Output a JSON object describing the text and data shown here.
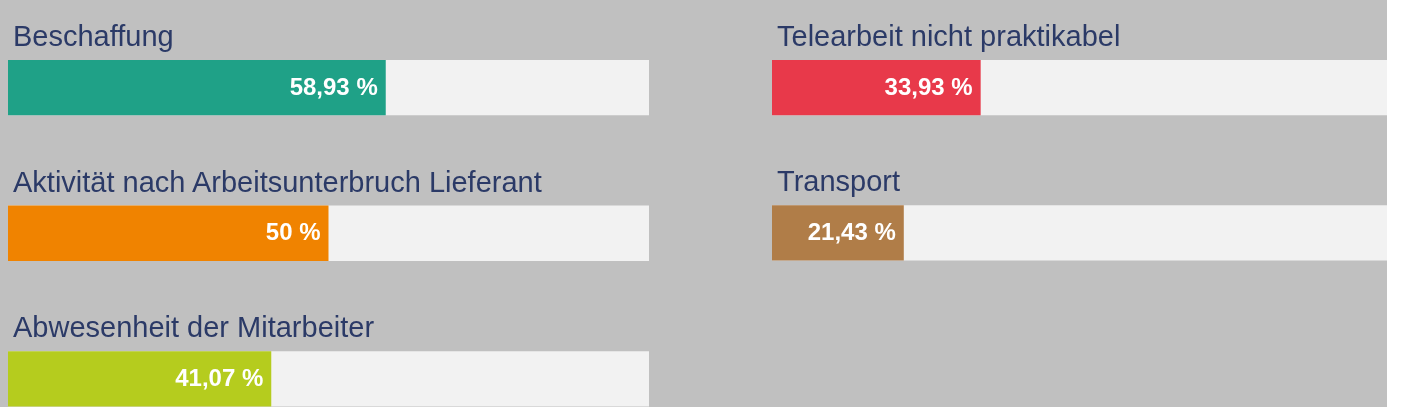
{
  "chart_data": [
    {
      "type": "bar",
      "orientation": "horizontal",
      "categories": [
        "Beschaffung",
        "Aktivität nach Arbeitsunterbruch Lieferant",
        "Abwesenheit der Mitarbeiter"
      ],
      "values": [
        58.93,
        50,
        41.07
      ],
      "colors": [
        "#1fa187",
        "#f08300",
        "#b5cc1e"
      ],
      "value_labels": [
        "58,93 %",
        "50 %",
        "41,07 %"
      ],
      "xlim": [
        0,
        100
      ],
      "tick_labels": false
    },
    {
      "type": "bar",
      "orientation": "horizontal",
      "categories": [
        "Telearbeit nicht praktikabel",
        "Transport"
      ],
      "values": [
        33.93,
        21.43
      ],
      "colors": [
        "#e8394a",
        "#b07d48"
      ],
      "value_labels": [
        "33,93 %",
        "21,43 %"
      ],
      "xlim": [
        0,
        100
      ],
      "tick_labels": false
    }
  ]
}
